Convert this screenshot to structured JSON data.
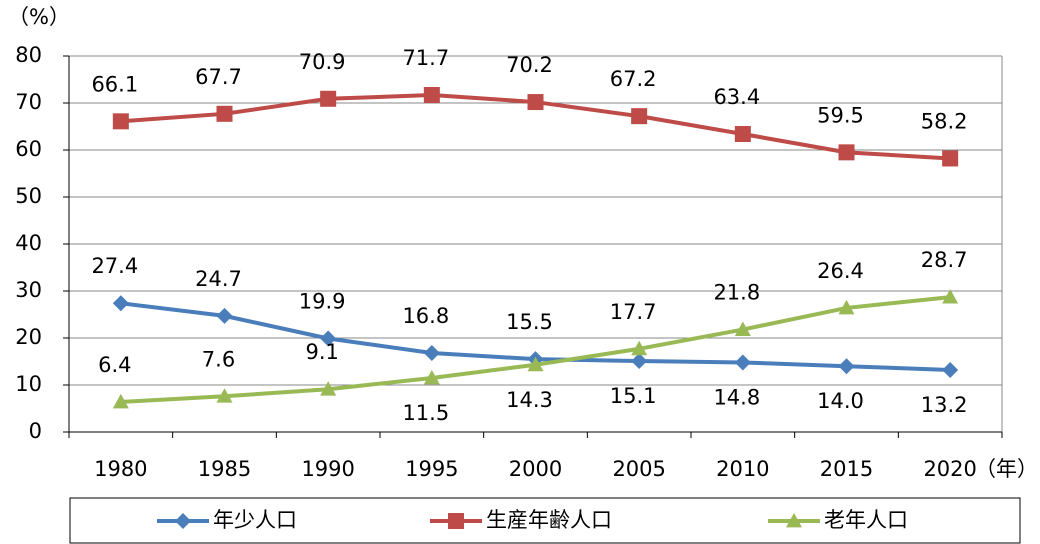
{
  "chart_data": {
    "type": "line",
    "y_label": "（%）",
    "x_label": "（年）",
    "categories": [
      "1980",
      "1985",
      "1990",
      "1995",
      "2000",
      "2005",
      "2010",
      "2015",
      "2020"
    ],
    "series": [
      {
        "name": "年少人口",
        "color": "#4a7ebb",
        "marker": "diamond",
        "values": [
          27.4,
          24.7,
          19.9,
          16.8,
          15.5,
          15.1,
          14.8,
          14.0,
          13.2
        ],
        "value_labels": [
          "27.4",
          "24.7",
          "19.9",
          "16.8",
          "15.5",
          "15.1",
          "14.8",
          "14.0",
          "13.2"
        ]
      },
      {
        "name": "生産年齢人口",
        "color": "#be4b48",
        "marker": "square",
        "values": [
          66.1,
          67.7,
          70.9,
          71.7,
          70.2,
          67.2,
          63.4,
          59.5,
          58.2
        ],
        "value_labels": [
          "66.1",
          "67.7",
          "70.9",
          "71.7",
          "70.2",
          "67.2",
          "63.4",
          "59.5",
          "58.2"
        ]
      },
      {
        "name": "老年人口",
        "color": "#98b954",
        "marker": "triangle",
        "values": [
          6.4,
          7.6,
          9.1,
          11.5,
          14.3,
          17.7,
          21.8,
          26.4,
          28.7
        ],
        "value_labels": [
          "6.4",
          "7.6",
          "9.1",
          "11.5",
          "14.3",
          "17.7",
          "21.8",
          "26.4",
          "28.7"
        ]
      }
    ],
    "ylim": [
      0,
      80
    ],
    "yticks": [
      0,
      10,
      20,
      30,
      40,
      50,
      60,
      70,
      80
    ],
    "grid": true,
    "legend": "bottom"
  }
}
